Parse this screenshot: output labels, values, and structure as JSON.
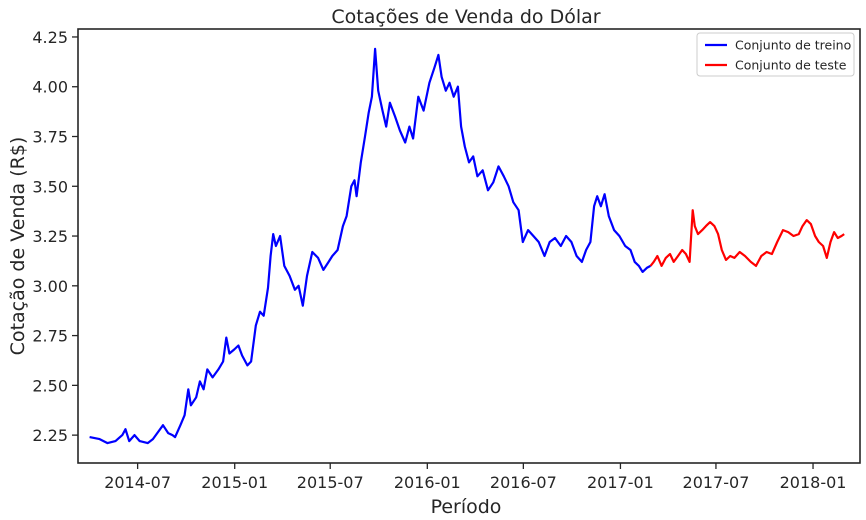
{
  "chart_data": {
    "type": "line",
    "title": "Cotações de Venda do Dólar",
    "xlabel": "Período",
    "ylabel": "Cotação de Venda (R$)",
    "x_domain": [
      "2014-03-10",
      "2018-03-31"
    ],
    "ylim": [
      2.11,
      4.29
    ],
    "x_ticks": [
      "2014-07",
      "2015-01",
      "2015-07",
      "2016-01",
      "2016-07",
      "2017-01",
      "2017-07",
      "2018-01"
    ],
    "y_ticks": [
      "2.25",
      "2.50",
      "2.75",
      "3.00",
      "3.25",
      "3.50",
      "3.75",
      "4.00",
      "4.25"
    ],
    "grid": false,
    "legend": "top-right",
    "series": [
      {
        "name": "Conjunto de treino",
        "color": "#0000ff",
        "points": [
          [
            "2014-04-01",
            2.24
          ],
          [
            "2014-04-20",
            2.23
          ],
          [
            "2014-05-05",
            2.21
          ],
          [
            "2014-05-20",
            2.22
          ],
          [
            "2014-06-02",
            2.25
          ],
          [
            "2014-06-08",
            2.28
          ],
          [
            "2014-06-15",
            2.22
          ],
          [
            "2014-06-25",
            2.25
          ],
          [
            "2014-07-05",
            2.22
          ],
          [
            "2014-07-20",
            2.21
          ],
          [
            "2014-07-30",
            2.23
          ],
          [
            "2014-08-10",
            2.27
          ],
          [
            "2014-08-18",
            2.3
          ],
          [
            "2014-08-28",
            2.26
          ],
          [
            "2014-09-05",
            2.25
          ],
          [
            "2014-09-10",
            2.24
          ],
          [
            "2014-09-20",
            2.3
          ],
          [
            "2014-09-28",
            2.35
          ],
          [
            "2014-10-05",
            2.48
          ],
          [
            "2014-10-10",
            2.4
          ],
          [
            "2014-10-20",
            2.44
          ],
          [
            "2014-10-27",
            2.52
          ],
          [
            "2014-11-03",
            2.48
          ],
          [
            "2014-11-10",
            2.58
          ],
          [
            "2014-11-20",
            2.54
          ],
          [
            "2014-12-01",
            2.58
          ],
          [
            "2014-12-10",
            2.62
          ],
          [
            "2014-12-16",
            2.74
          ],
          [
            "2014-12-22",
            2.66
          ],
          [
            "2014-12-31",
            2.68
          ],
          [
            "2015-01-08",
            2.7
          ],
          [
            "2015-01-15",
            2.65
          ],
          [
            "2015-01-25",
            2.6
          ],
          [
            "2015-02-01",
            2.62
          ],
          [
            "2015-02-10",
            2.8
          ],
          [
            "2015-02-18",
            2.87
          ],
          [
            "2015-02-25",
            2.85
          ],
          [
            "2015-03-05",
            2.99
          ],
          [
            "2015-03-10",
            3.15
          ],
          [
            "2015-03-15",
            3.26
          ],
          [
            "2015-03-20",
            3.2
          ],
          [
            "2015-03-28",
            3.25
          ],
          [
            "2015-04-05",
            3.1
          ],
          [
            "2015-04-15",
            3.05
          ],
          [
            "2015-04-25",
            2.98
          ],
          [
            "2015-05-02",
            3.0
          ],
          [
            "2015-05-10",
            2.9
          ],
          [
            "2015-05-18",
            3.05
          ],
          [
            "2015-05-28",
            3.17
          ],
          [
            "2015-06-08",
            3.14
          ],
          [
            "2015-06-18",
            3.08
          ],
          [
            "2015-06-28",
            3.12
          ],
          [
            "2015-07-05",
            3.15
          ],
          [
            "2015-07-15",
            3.18
          ],
          [
            "2015-07-25",
            3.3
          ],
          [
            "2015-08-01",
            3.35
          ],
          [
            "2015-08-10",
            3.5
          ],
          [
            "2015-08-16",
            3.53
          ],
          [
            "2015-08-20",
            3.45
          ],
          [
            "2015-08-28",
            3.62
          ],
          [
            "2015-09-05",
            3.75
          ],
          [
            "2015-09-12",
            3.87
          ],
          [
            "2015-09-18",
            3.95
          ],
          [
            "2015-09-24",
            4.19
          ],
          [
            "2015-09-30",
            3.98
          ],
          [
            "2015-10-08",
            3.88
          ],
          [
            "2015-10-15",
            3.8
          ],
          [
            "2015-10-22",
            3.92
          ],
          [
            "2015-11-01",
            3.85
          ],
          [
            "2015-11-10",
            3.78
          ],
          [
            "2015-11-20",
            3.72
          ],
          [
            "2015-11-28",
            3.8
          ],
          [
            "2015-12-05",
            3.74
          ],
          [
            "2015-12-15",
            3.95
          ],
          [
            "2015-12-25",
            3.88
          ],
          [
            "2016-01-05",
            4.02
          ],
          [
            "2016-01-15",
            4.1
          ],
          [
            "2016-01-22",
            4.16
          ],
          [
            "2016-01-28",
            4.05
          ],
          [
            "2016-02-05",
            3.98
          ],
          [
            "2016-02-12",
            4.02
          ],
          [
            "2016-02-20",
            3.95
          ],
          [
            "2016-02-28",
            4.0
          ],
          [
            "2016-03-05",
            3.8
          ],
          [
            "2016-03-12",
            3.7
          ],
          [
            "2016-03-20",
            3.62
          ],
          [
            "2016-03-28",
            3.65
          ],
          [
            "2016-04-05",
            3.55
          ],
          [
            "2016-04-15",
            3.58
          ],
          [
            "2016-04-25",
            3.48
          ],
          [
            "2016-05-05",
            3.52
          ],
          [
            "2016-05-15",
            3.6
          ],
          [
            "2016-05-25",
            3.55
          ],
          [
            "2016-06-03",
            3.5
          ],
          [
            "2016-06-12",
            3.42
          ],
          [
            "2016-06-22",
            3.38
          ],
          [
            "2016-06-30",
            3.22
          ],
          [
            "2016-07-10",
            3.28
          ],
          [
            "2016-07-20",
            3.25
          ],
          [
            "2016-07-30",
            3.22
          ],
          [
            "2016-08-10",
            3.15
          ],
          [
            "2016-08-20",
            3.22
          ],
          [
            "2016-08-30",
            3.24
          ],
          [
            "2016-09-10",
            3.2
          ],
          [
            "2016-09-20",
            3.25
          ],
          [
            "2016-09-30",
            3.22
          ],
          [
            "2016-10-10",
            3.15
          ],
          [
            "2016-10-20",
            3.12
          ],
          [
            "2016-10-28",
            3.18
          ],
          [
            "2016-11-05",
            3.22
          ],
          [
            "2016-11-12",
            3.4
          ],
          [
            "2016-11-18",
            3.45
          ],
          [
            "2016-11-25",
            3.4
          ],
          [
            "2016-12-02",
            3.46
          ],
          [
            "2016-12-10",
            3.35
          ],
          [
            "2016-12-20",
            3.28
          ],
          [
            "2016-12-30",
            3.25
          ],
          [
            "2017-01-10",
            3.2
          ],
          [
            "2017-01-20",
            3.18
          ],
          [
            "2017-01-28",
            3.12
          ],
          [
            "2017-02-05",
            3.1
          ],
          [
            "2017-02-12",
            3.07
          ],
          [
            "2017-02-20",
            3.09
          ],
          [
            "2017-02-27",
            3.1
          ]
        ]
      },
      {
        "name": "Conjunto de teste",
        "color": "#ff0000",
        "points": [
          [
            "2017-02-27",
            3.1
          ],
          [
            "2017-03-05",
            3.12
          ],
          [
            "2017-03-12",
            3.15
          ],
          [
            "2017-03-20",
            3.1
          ],
          [
            "2017-03-28",
            3.14
          ],
          [
            "2017-04-05",
            3.16
          ],
          [
            "2017-04-12",
            3.12
          ],
          [
            "2017-04-20",
            3.15
          ],
          [
            "2017-04-28",
            3.18
          ],
          [
            "2017-05-05",
            3.16
          ],
          [
            "2017-05-12",
            3.12
          ],
          [
            "2017-05-18",
            3.38
          ],
          [
            "2017-05-22",
            3.3
          ],
          [
            "2017-05-28",
            3.26
          ],
          [
            "2017-06-05",
            3.28
          ],
          [
            "2017-06-12",
            3.3
          ],
          [
            "2017-06-20",
            3.32
          ],
          [
            "2017-06-28",
            3.3
          ],
          [
            "2017-07-05",
            3.26
          ],
          [
            "2017-07-12",
            3.18
          ],
          [
            "2017-07-20",
            3.13
          ],
          [
            "2017-07-28",
            3.15
          ],
          [
            "2017-08-05",
            3.14
          ],
          [
            "2017-08-15",
            3.17
          ],
          [
            "2017-08-25",
            3.15
          ],
          [
            "2017-09-05",
            3.12
          ],
          [
            "2017-09-15",
            3.1
          ],
          [
            "2017-09-25",
            3.15
          ],
          [
            "2017-10-05",
            3.17
          ],
          [
            "2017-10-15",
            3.16
          ],
          [
            "2017-10-25",
            3.22
          ],
          [
            "2017-11-05",
            3.28
          ],
          [
            "2017-11-15",
            3.27
          ],
          [
            "2017-11-25",
            3.25
          ],
          [
            "2017-12-05",
            3.26
          ],
          [
            "2017-12-12",
            3.3
          ],
          [
            "2017-12-20",
            3.33
          ],
          [
            "2017-12-28",
            3.31
          ],
          [
            "2018-01-05",
            3.25
          ],
          [
            "2018-01-12",
            3.22
          ],
          [
            "2018-01-20",
            3.2
          ],
          [
            "2018-01-27",
            3.14
          ],
          [
            "2018-02-03",
            3.22
          ],
          [
            "2018-02-10",
            3.27
          ],
          [
            "2018-02-17",
            3.24
          ],
          [
            "2018-02-24",
            3.25
          ],
          [
            "2018-03-01",
            3.26
          ]
        ]
      }
    ]
  }
}
